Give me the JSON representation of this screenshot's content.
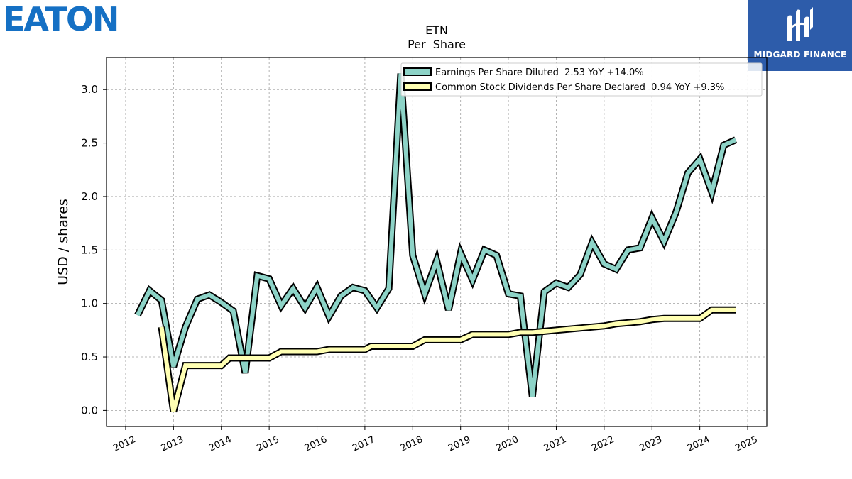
{
  "logos": {
    "company": "EATON",
    "sponsor": "MIDGARD FINANCE"
  },
  "colors": {
    "eps": "#8dd3c7",
    "dividends": "#ffffb3",
    "outline": "#000000",
    "grid": "#a0a0a0",
    "brand_blue": "#1570c4",
    "sponsor_blue": "#2d5caa"
  },
  "chart_data": {
    "type": "line",
    "title": "ETN",
    "subtitle": "Per  Share",
    "ylabel": "USD / shares",
    "xlabel": "",
    "xlim": [
      2011.6,
      2025.4
    ],
    "ylim": [
      -0.15,
      3.3
    ],
    "grid": true,
    "legend_position": "top-right",
    "x_ticks": [
      "2012",
      "2013",
      "2014",
      "2015",
      "2016",
      "2017",
      "2018",
      "2019",
      "2020",
      "2021",
      "2022",
      "2023",
      "2024",
      "2025"
    ],
    "y_ticks": [
      "0.0",
      "0.5",
      "1.0",
      "1.5",
      "2.0",
      "2.5",
      "3.0"
    ],
    "series": [
      {
        "name": "Earnings Per Share Diluted  2.53 YoY +14.0%",
        "color": "#8dd3c7",
        "points": [
          [
            2012.25,
            0.89
          ],
          [
            2012.5,
            1.12
          ],
          [
            2012.75,
            1.03
          ],
          [
            2013.0,
            0.41
          ],
          [
            2013.25,
            0.78
          ],
          [
            2013.5,
            1.04
          ],
          [
            2013.75,
            1.08
          ],
          [
            2014.0,
            1.01
          ],
          [
            2014.25,
            0.93
          ],
          [
            2014.5,
            0.35
          ],
          [
            2014.75,
            1.26
          ],
          [
            2015.0,
            1.23
          ],
          [
            2015.25,
            0.98
          ],
          [
            2015.5,
            1.14
          ],
          [
            2015.75,
            0.96
          ],
          [
            2016.0,
            1.15
          ],
          [
            2016.25,
            0.88
          ],
          [
            2016.5,
            1.07
          ],
          [
            2016.75,
            1.15
          ],
          [
            2017.0,
            1.12
          ],
          [
            2017.25,
            0.96
          ],
          [
            2017.5,
            1.14
          ],
          [
            2017.75,
            3.15
          ],
          [
            2018.0,
            1.45
          ],
          [
            2018.25,
            1.09
          ],
          [
            2018.5,
            1.4
          ],
          [
            2018.75,
            0.94
          ],
          [
            2019.0,
            1.47
          ],
          [
            2019.25,
            1.22
          ],
          [
            2019.5,
            1.5
          ],
          [
            2019.75,
            1.45
          ],
          [
            2020.0,
            1.09
          ],
          [
            2020.25,
            1.07
          ],
          [
            2020.5,
            0.13
          ],
          [
            2020.75,
            1.11
          ],
          [
            2021.0,
            1.19
          ],
          [
            2021.25,
            1.15
          ],
          [
            2021.5,
            1.27
          ],
          [
            2021.75,
            1.57
          ],
          [
            2022.0,
            1.37
          ],
          [
            2022.25,
            1.32
          ],
          [
            2022.5,
            1.5
          ],
          [
            2022.75,
            1.52
          ],
          [
            2023.0,
            1.8
          ],
          [
            2023.25,
            1.58
          ],
          [
            2023.5,
            1.85
          ],
          [
            2023.75,
            2.22
          ],
          [
            2024.0,
            2.35
          ],
          [
            2024.25,
            2.04
          ],
          [
            2024.5,
            2.48
          ],
          [
            2024.75,
            2.53
          ]
        ]
      },
      {
        "name": "Common Stock Dividends Per Share Declared  0.94 YoY +9.3%",
        "color": "#ffffb3",
        "points": [
          [
            2012.75,
            0.78
          ],
          [
            2013.0,
            -0.01
          ],
          [
            2013.25,
            0.42
          ],
          [
            2013.5,
            0.42
          ],
          [
            2013.75,
            0.42
          ],
          [
            2014.0,
            0.42
          ],
          [
            2014.17,
            0.49
          ],
          [
            2014.5,
            0.49
          ],
          [
            2014.75,
            0.49
          ],
          [
            2015.0,
            0.49
          ],
          [
            2015.25,
            0.55
          ],
          [
            2015.5,
            0.55
          ],
          [
            2015.75,
            0.55
          ],
          [
            2016.0,
            0.55
          ],
          [
            2016.25,
            0.57
          ],
          [
            2016.5,
            0.57
          ],
          [
            2016.75,
            0.57
          ],
          [
            2017.0,
            0.57
          ],
          [
            2017.13,
            0.6
          ],
          [
            2017.5,
            0.6
          ],
          [
            2017.75,
            0.6
          ],
          [
            2018.0,
            0.6
          ],
          [
            2018.25,
            0.66
          ],
          [
            2018.5,
            0.66
          ],
          [
            2018.75,
            0.66
          ],
          [
            2019.0,
            0.66
          ],
          [
            2019.25,
            0.71
          ],
          [
            2019.5,
            0.71
          ],
          [
            2019.75,
            0.71
          ],
          [
            2020.0,
            0.71
          ],
          [
            2020.25,
            0.73
          ],
          [
            2020.5,
            0.73
          ],
          [
            2020.75,
            0.74
          ],
          [
            2021.0,
            0.75
          ],
          [
            2021.25,
            0.76
          ],
          [
            2021.5,
            0.77
          ],
          [
            2021.75,
            0.78
          ],
          [
            2022.0,
            0.79
          ],
          [
            2022.25,
            0.81
          ],
          [
            2022.5,
            0.82
          ],
          [
            2022.75,
            0.83
          ],
          [
            2023.0,
            0.85
          ],
          [
            2023.25,
            0.86
          ],
          [
            2023.5,
            0.86
          ],
          [
            2023.75,
            0.86
          ],
          [
            2024.0,
            0.86
          ],
          [
            2024.25,
            0.94
          ],
          [
            2024.5,
            0.94
          ],
          [
            2024.75,
            0.94
          ]
        ]
      }
    ]
  }
}
